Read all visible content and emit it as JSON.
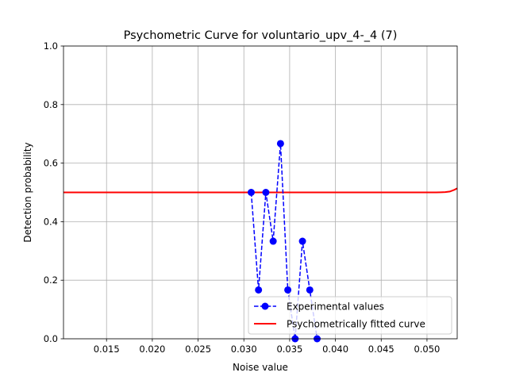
{
  "chart_data": {
    "type": "line",
    "title": "Psychometric Curve for voluntario_upv_4-_4 (7)",
    "xlabel": "Noise value",
    "ylabel": "Detection probability",
    "xlim": [
      0.0103,
      0.0533
    ],
    "ylim": [
      0.0,
      1.0
    ],
    "xticks": [
      "0.015",
      "0.020",
      "0.025",
      "0.030",
      "0.035",
      "0.040",
      "0.045",
      "0.050"
    ],
    "xtick_values": [
      0.015,
      0.02,
      0.025,
      0.03,
      0.035,
      0.04,
      0.045,
      0.05
    ],
    "yticks": [
      "0.0",
      "0.2",
      "0.4",
      "0.6",
      "0.8",
      "1.0"
    ],
    "ytick_values": [
      0.0,
      0.2,
      0.4,
      0.6,
      0.8,
      1.0
    ],
    "grid": true,
    "legend_position": "lower-right",
    "series": [
      {
        "name": "Experimental values",
        "style": "dashed-with-markers",
        "color": "#0000ff",
        "x": [
          0.0308,
          0.0316,
          0.0324,
          0.0332,
          0.034,
          0.0348,
          0.0356,
          0.0364,
          0.0372,
          0.038
        ],
        "y": [
          0.5,
          0.1667,
          0.5,
          0.3333,
          0.6667,
          0.1667,
          0.0,
          0.3333,
          0.1667,
          0.0
        ]
      },
      {
        "name": "Psychometrically fitted curve",
        "style": "solid",
        "color": "#ff0000",
        "x": [
          0.0103,
          0.02,
          0.03,
          0.04,
          0.05,
          0.051,
          0.0515,
          0.052,
          0.0525,
          0.053,
          0.0533
        ],
        "y": [
          0.5,
          0.5,
          0.5,
          0.5,
          0.5,
          0.5,
          0.5005,
          0.501,
          0.503,
          0.509,
          0.514
        ]
      }
    ]
  }
}
